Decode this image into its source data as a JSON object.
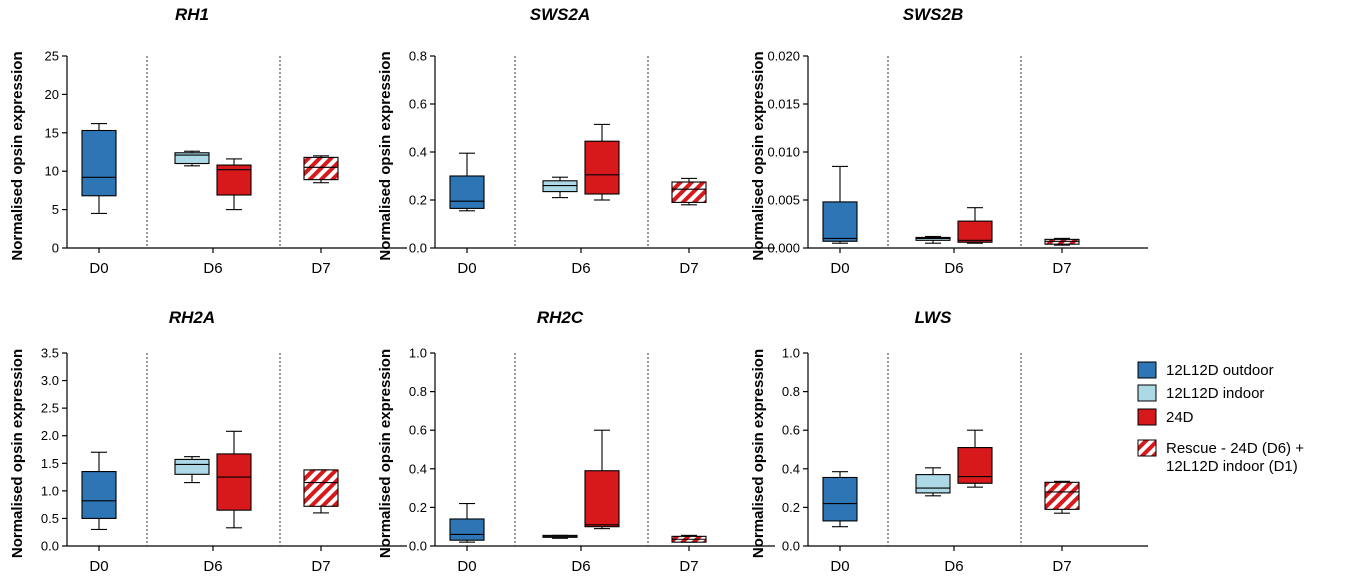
{
  "legend": {
    "items": [
      {
        "name": "12L12D outdoor",
        "color": "#2e75b6",
        "pattern": "solid"
      },
      {
        "name": "12L12D indoor",
        "color": "#add8e6",
        "pattern": "solid"
      },
      {
        "name": "24D",
        "color": "#d7191c",
        "pattern": "solid"
      },
      {
        "name": "Rescue - 24D (D6) + 12L12D indoor (D1)",
        "color": "#d7191c",
        "pattern": "hatched",
        "lines": [
          "Rescue - 24D (D6) +",
          "12L12D indoor (D1)"
        ]
      }
    ]
  },
  "chart_data": [
    {
      "type": "box",
      "title": "RH1",
      "ylabel": "Normalised opsin expression",
      "categories": [
        "D0",
        "D6",
        "D7"
      ],
      "ylim": [
        0,
        25
      ],
      "yticks": [
        "0",
        "5",
        "10",
        "15",
        "20",
        "25"
      ],
      "series": [
        {
          "name": "12L12D outdoor",
          "group": "D0",
          "min": 4.5,
          "q1": 6.8,
          "median": 9.2,
          "q3": 15.3,
          "max": 16.2
        },
        {
          "name": "12L12D indoor",
          "group": "D6",
          "min": 10.7,
          "q1": 11.0,
          "median": 12.1,
          "q3": 12.4,
          "max": 12.6
        },
        {
          "name": "24D",
          "group": "D6",
          "min": 5.0,
          "q1": 6.9,
          "median": 10.2,
          "q3": 10.8,
          "max": 11.6
        },
        {
          "name": "Rescue - 24D (D6) + 12L12D indoor (D1)",
          "group": "D7",
          "min": 8.5,
          "q1": 8.9,
          "median": 10.5,
          "q3": 11.8,
          "max": 12.0
        }
      ]
    },
    {
      "type": "box",
      "title": "SWS2A",
      "ylabel": "Normalised opsin expression",
      "categories": [
        "D0",
        "D6",
        "D7"
      ],
      "ylim": [
        0,
        0.8
      ],
      "yticks": [
        "0.0",
        "0.2",
        "0.4",
        "0.6",
        "0.8"
      ],
      "series": [
        {
          "name": "12L12D outdoor",
          "group": "D0",
          "min": 0.155,
          "q1": 0.165,
          "median": 0.195,
          "q3": 0.3,
          "max": 0.395
        },
        {
          "name": "12L12D indoor",
          "group": "D6",
          "min": 0.21,
          "q1": 0.235,
          "median": 0.26,
          "q3": 0.28,
          "max": 0.295
        },
        {
          "name": "24D",
          "group": "D6",
          "min": 0.2,
          "q1": 0.225,
          "median": 0.305,
          "q3": 0.445,
          "max": 0.515
        },
        {
          "name": "Rescue - 24D (D6) + 12L12D indoor (D1)",
          "group": "D7",
          "min": 0.18,
          "q1": 0.19,
          "median": 0.245,
          "q3": 0.275,
          "max": 0.29
        }
      ]
    },
    {
      "type": "box",
      "title": "SWS2B",
      "ylabel": "Normalised opsin expression",
      "categories": [
        "D0",
        "D6",
        "D7"
      ],
      "ylim": [
        0,
        0.02
      ],
      "yticks": [
        "0.000",
        "0.005",
        "0.010",
        "0.015",
        "0.020"
      ],
      "series": [
        {
          "name": "12L12D outdoor",
          "group": "D0",
          "min": 0.0005,
          "q1": 0.0007,
          "median": 0.001,
          "q3": 0.0048,
          "max": 0.0085
        },
        {
          "name": "12L12D indoor",
          "group": "D6",
          "min": 0.0005,
          "q1": 0.0008,
          "median": 0.001,
          "q3": 0.0011,
          "max": 0.0012
        },
        {
          "name": "24D",
          "group": "D6",
          "min": 0.0005,
          "q1": 0.0006,
          "median": 0.0008,
          "q3": 0.0028,
          "max": 0.0042
        },
        {
          "name": "Rescue - 24D (D6) + 12L12D indoor (D1)",
          "group": "D7",
          "min": 0.0003,
          "q1": 0.0004,
          "median": 0.0007,
          "q3": 0.0009,
          "max": 0.001
        }
      ]
    },
    {
      "type": "box",
      "title": "RH2A",
      "ylabel": "Normalised opsin expression",
      "categories": [
        "D0",
        "D6",
        "D7"
      ],
      "ylim": [
        0,
        3.5
      ],
      "yticks": [
        "0.0",
        "0.5",
        "1.0",
        "1.5",
        "2.0",
        "2.5",
        "3.0",
        "3.5"
      ],
      "series": [
        {
          "name": "12L12D outdoor",
          "group": "D0",
          "min": 0.3,
          "q1": 0.5,
          "median": 0.82,
          "q3": 1.35,
          "max": 1.7
        },
        {
          "name": "12L12D indoor",
          "group": "D6",
          "min": 1.15,
          "q1": 1.3,
          "median": 1.48,
          "q3": 1.57,
          "max": 1.62
        },
        {
          "name": "24D",
          "group": "D6",
          "min": 0.33,
          "q1": 0.65,
          "median": 1.25,
          "q3": 1.67,
          "max": 2.08
        },
        {
          "name": "Rescue - 24D (D6) + 12L12D indoor (D1)",
          "group": "D7",
          "min": 0.6,
          "q1": 0.72,
          "median": 1.15,
          "q3": 1.38,
          "max": 1.38
        }
      ]
    },
    {
      "type": "box",
      "title": "RH2C",
      "ylabel": "Normalised opsin expression",
      "categories": [
        "D0",
        "D6",
        "D7"
      ],
      "ylim": [
        0,
        1.0
      ],
      "yticks": [
        "0.0",
        "0.2",
        "0.4",
        "0.6",
        "0.8",
        "1.0"
      ],
      "series": [
        {
          "name": "12L12D outdoor",
          "group": "D0",
          "min": 0.02,
          "q1": 0.03,
          "median": 0.06,
          "q3": 0.14,
          "max": 0.22
        },
        {
          "name": "12L12D indoor",
          "group": "D6",
          "min": 0.04,
          "q1": 0.045,
          "median": 0.05,
          "q3": 0.055,
          "max": 0.055
        },
        {
          "name": "24D",
          "group": "D6",
          "min": 0.09,
          "q1": 0.1,
          "median": 0.11,
          "q3": 0.39,
          "max": 0.6
        },
        {
          "name": "Rescue - 24D (D6) + 12L12D indoor (D1)",
          "group": "D7",
          "min": 0.02,
          "q1": 0.02,
          "median": 0.035,
          "q3": 0.05,
          "max": 0.055
        }
      ]
    },
    {
      "type": "box",
      "title": "LWS",
      "ylabel": "Normalised opsin expression",
      "categories": [
        "D0",
        "D6",
        "D7"
      ],
      "ylim": [
        0,
        1.0
      ],
      "yticks": [
        "0.0",
        "0.2",
        "0.4",
        "0.6",
        "0.8",
        "1.0"
      ],
      "series": [
        {
          "name": "12L12D outdoor",
          "group": "D0",
          "min": 0.1,
          "q1": 0.13,
          "median": 0.22,
          "q3": 0.355,
          "max": 0.385
        },
        {
          "name": "12L12D indoor",
          "group": "D6",
          "min": 0.26,
          "q1": 0.275,
          "median": 0.3,
          "q3": 0.37,
          "max": 0.405
        },
        {
          "name": "24D",
          "group": "D6",
          "min": 0.305,
          "q1": 0.325,
          "median": 0.36,
          "q3": 0.51,
          "max": 0.6
        },
        {
          "name": "Rescue - 24D (D6) + 12L12D indoor (D1)",
          "group": "D7",
          "min": 0.17,
          "q1": 0.19,
          "median": 0.28,
          "q3": 0.33,
          "max": 0.335
        }
      ]
    }
  ]
}
